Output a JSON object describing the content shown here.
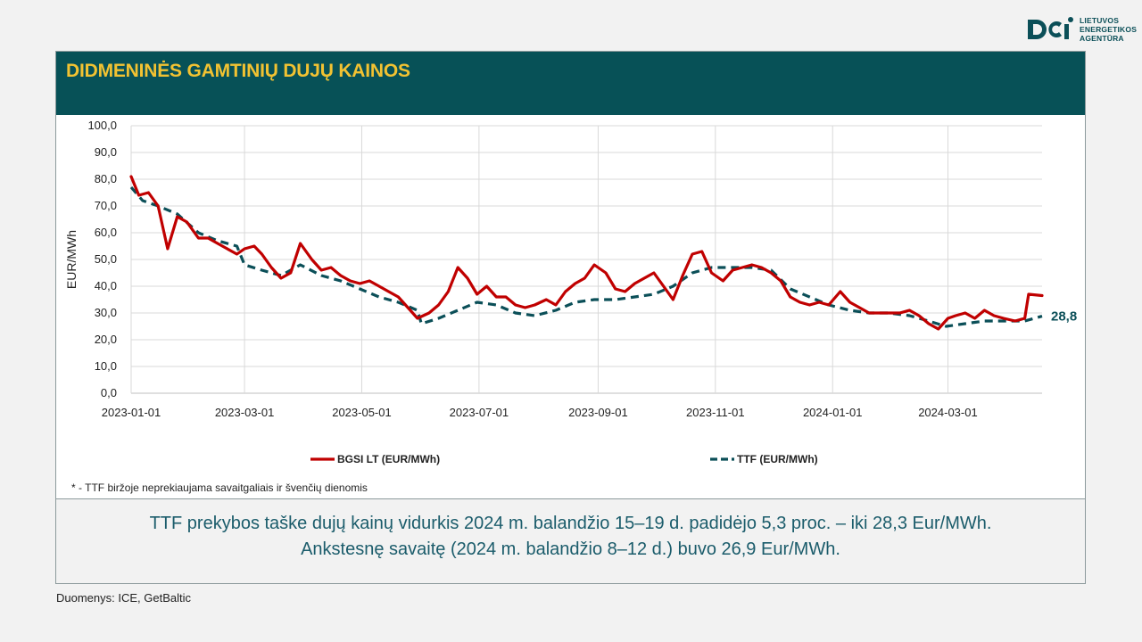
{
  "logo": {
    "name": "logo-icon",
    "lines": [
      "LIETUVOS",
      "ENERGETIKOS",
      "AGENTŪRA"
    ]
  },
  "header": {
    "title": "DIDMENINĖS GAMTINIŲ DUJŲ KAINOS"
  },
  "footnote": "* - TTF biržoje neprekiaujama savaitgaliais ir švenčių dienomis",
  "summary": {
    "line1": "TTF prekybos taške dujų kainų vidurkis 2024 m. balandžio 15–19 d. padidėjo 5,3 proc. – iki 28,3 Eur/MWh.",
    "line2": "Ankstesnę savaitę (2024 m. balandžio 8–12 d.) buvo 26,9 Eur/MWh."
  },
  "source": "Duomenys: ICE, GetBaltic",
  "colors": {
    "accent": "#075157",
    "title": "#f2c232",
    "bgsi": "#c00000",
    "ttf": "#0b4f58"
  },
  "chart_data": {
    "type": "line",
    "ylabel": "EUR/MWh",
    "ylim": [
      0,
      100
    ],
    "yticks": [
      "0,0",
      "10,0",
      "20,0",
      "30,0",
      "40,0",
      "50,0",
      "60,0",
      "70,0",
      "80,0",
      "90,0",
      "100,0"
    ],
    "xticks": [
      "2023-01-01",
      "2023-03-01",
      "2023-05-01",
      "2023-07-01",
      "2023-09-01",
      "2023-11-01",
      "2024-01-01",
      "2024-03-01"
    ],
    "xlim": [
      "2023-01-01",
      "2024-04-19"
    ],
    "grid": true,
    "legend_position": "bottom",
    "annotation": {
      "text": "28,8",
      "x": "2024-04-19",
      "y": 28.8
    },
    "series": [
      {
        "name": "BGSI LT (EUR/MWh)",
        "style": "solid",
        "color": "#c00000",
        "points": [
          [
            "2023-01-01",
            81
          ],
          [
            "2023-01-05",
            74
          ],
          [
            "2023-01-10",
            75
          ],
          [
            "2023-01-15",
            70
          ],
          [
            "2023-01-20",
            54
          ],
          [
            "2023-01-25",
            66
          ],
          [
            "2023-01-30",
            64
          ],
          [
            "2023-02-05",
            58
          ],
          [
            "2023-02-10",
            58
          ],
          [
            "2023-02-15",
            56
          ],
          [
            "2023-02-20",
            54
          ],
          [
            "2023-02-25",
            52
          ],
          [
            "2023-03-01",
            54
          ],
          [
            "2023-03-06",
            55
          ],
          [
            "2023-03-10",
            52
          ],
          [
            "2023-03-15",
            47
          ],
          [
            "2023-03-20",
            43
          ],
          [
            "2023-03-25",
            45
          ],
          [
            "2023-03-30",
            56
          ],
          [
            "2023-04-05",
            50
          ],
          [
            "2023-04-10",
            46
          ],
          [
            "2023-04-15",
            47
          ],
          [
            "2023-04-20",
            44
          ],
          [
            "2023-04-25",
            42
          ],
          [
            "2023-04-30",
            41
          ],
          [
            "2023-05-05",
            42
          ],
          [
            "2023-05-10",
            40
          ],
          [
            "2023-05-15",
            38
          ],
          [
            "2023-05-20",
            36
          ],
          [
            "2023-05-25",
            32
          ],
          [
            "2023-05-30",
            28
          ],
          [
            "2023-06-05",
            30
          ],
          [
            "2023-06-10",
            33
          ],
          [
            "2023-06-15",
            38
          ],
          [
            "2023-06-20",
            47
          ],
          [
            "2023-06-25",
            43
          ],
          [
            "2023-06-30",
            37
          ],
          [
            "2023-07-05",
            40
          ],
          [
            "2023-07-10",
            36
          ],
          [
            "2023-07-15",
            36
          ],
          [
            "2023-07-20",
            33
          ],
          [
            "2023-07-25",
            32
          ],
          [
            "2023-07-30",
            33
          ],
          [
            "2023-08-05",
            35
          ],
          [
            "2023-08-10",
            33
          ],
          [
            "2023-08-15",
            38
          ],
          [
            "2023-08-20",
            41
          ],
          [
            "2023-08-25",
            43
          ],
          [
            "2023-08-30",
            48
          ],
          [
            "2023-09-05",
            45
          ],
          [
            "2023-09-10",
            39
          ],
          [
            "2023-09-15",
            38
          ],
          [
            "2023-09-20",
            41
          ],
          [
            "2023-09-25",
            43
          ],
          [
            "2023-09-30",
            45
          ],
          [
            "2023-10-05",
            40
          ],
          [
            "2023-10-10",
            35
          ],
          [
            "2023-10-15",
            44
          ],
          [
            "2023-10-20",
            52
          ],
          [
            "2023-10-25",
            53
          ],
          [
            "2023-10-30",
            45
          ],
          [
            "2023-11-05",
            42
          ],
          [
            "2023-11-10",
            46
          ],
          [
            "2023-11-15",
            47
          ],
          [
            "2023-11-20",
            48
          ],
          [
            "2023-11-25",
            47
          ],
          [
            "2023-11-30",
            45
          ],
          [
            "2023-12-05",
            42
          ],
          [
            "2023-12-10",
            36
          ],
          [
            "2023-12-15",
            34
          ],
          [
            "2023-12-20",
            33
          ],
          [
            "2023-12-25",
            34
          ],
          [
            "2023-12-30",
            33
          ],
          [
            "2024-01-05",
            38
          ],
          [
            "2024-01-10",
            34
          ],
          [
            "2024-01-15",
            32
          ],
          [
            "2024-01-20",
            30
          ],
          [
            "2024-01-25",
            30
          ],
          [
            "2024-01-30",
            30
          ],
          [
            "2024-02-05",
            30
          ],
          [
            "2024-02-10",
            31
          ],
          [
            "2024-02-15",
            29
          ],
          [
            "2024-02-20",
            26
          ],
          [
            "2024-02-25",
            24
          ],
          [
            "2024-03-01",
            28
          ],
          [
            "2024-03-05",
            29
          ],
          [
            "2024-03-10",
            30
          ],
          [
            "2024-03-15",
            28
          ],
          [
            "2024-03-20",
            31
          ],
          [
            "2024-03-25",
            29
          ],
          [
            "2024-03-30",
            28
          ],
          [
            "2024-04-05",
            27
          ],
          [
            "2024-04-10",
            28
          ],
          [
            "2024-04-12",
            37
          ],
          [
            "2024-04-19",
            36.5
          ]
        ]
      },
      {
        "name": "TTF (EUR/MWh)",
        "style": "dashed",
        "color": "#0b4f58",
        "points": [
          [
            "2023-01-01",
            77
          ],
          [
            "2023-01-07",
            72
          ],
          [
            "2023-01-15",
            70
          ],
          [
            "2023-01-25",
            67
          ],
          [
            "2023-02-05",
            60
          ],
          [
            "2023-02-15",
            57
          ],
          [
            "2023-02-25",
            55
          ],
          [
            "2023-03-01",
            48
          ],
          [
            "2023-03-10",
            46
          ],
          [
            "2023-03-20",
            44
          ],
          [
            "2023-03-30",
            48
          ],
          [
            "2023-04-10",
            44
          ],
          [
            "2023-04-20",
            42
          ],
          [
            "2023-04-30",
            39
          ],
          [
            "2023-05-10",
            36
          ],
          [
            "2023-05-20",
            34
          ],
          [
            "2023-05-30",
            31
          ],
          [
            "2023-06-01",
            26
          ],
          [
            "2023-06-10",
            28
          ],
          [
            "2023-06-20",
            31
          ],
          [
            "2023-06-30",
            34
          ],
          [
            "2023-07-10",
            33
          ],
          [
            "2023-07-20",
            30
          ],
          [
            "2023-07-30",
            29
          ],
          [
            "2023-08-10",
            31
          ],
          [
            "2023-08-20",
            34
          ],
          [
            "2023-08-30",
            35
          ],
          [
            "2023-09-10",
            35
          ],
          [
            "2023-09-20",
            36
          ],
          [
            "2023-09-30",
            37
          ],
          [
            "2023-10-10",
            40
          ],
          [
            "2023-10-20",
            45
          ],
          [
            "2023-10-30",
            47
          ],
          [
            "2023-11-10",
            47
          ],
          [
            "2023-11-20",
            47
          ],
          [
            "2023-11-30",
            46
          ],
          [
            "2023-12-10",
            39
          ],
          [
            "2023-12-20",
            36
          ],
          [
            "2023-12-30",
            33
          ],
          [
            "2024-01-10",
            31
          ],
          [
            "2024-01-20",
            30
          ],
          [
            "2024-01-30",
            30
          ],
          [
            "2024-02-10",
            29
          ],
          [
            "2024-02-20",
            27
          ],
          [
            "2024-02-29",
            25
          ],
          [
            "2024-03-10",
            26
          ],
          [
            "2024-03-20",
            27
          ],
          [
            "2024-03-30",
            27
          ],
          [
            "2024-04-10",
            27
          ],
          [
            "2024-04-19",
            28.8
          ]
        ]
      }
    ]
  }
}
